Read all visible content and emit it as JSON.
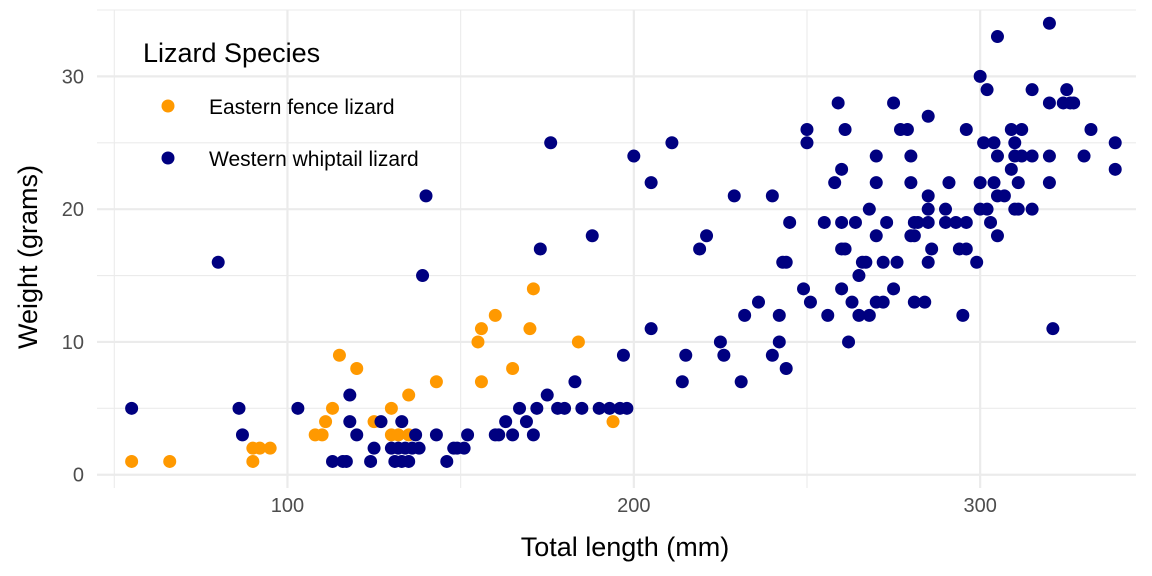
{
  "chart_data": {
    "type": "scatter",
    "xlabel": "Total length (mm)",
    "ylabel": "Weight (grams)",
    "xlim": [
      45,
      345
    ],
    "ylim": [
      -1,
      35
    ],
    "x_ticks": [
      100,
      200,
      300
    ],
    "y_ticks": [
      0,
      10,
      20,
      30
    ],
    "x_minor": [
      50,
      150,
      250,
      350
    ],
    "y_minor": [
      5,
      15,
      25,
      35
    ],
    "grid": true,
    "legend": {
      "title": "Lizard Species",
      "placement": "top-left"
    },
    "series": [
      {
        "name": "Eastern fence lizard",
        "color": "#ff9900",
        "points": [
          [
            55,
            1
          ],
          [
            66,
            1
          ],
          [
            90,
            1
          ],
          [
            90,
            2
          ],
          [
            92,
            2
          ],
          [
            95,
            2
          ],
          [
            108,
            3
          ],
          [
            110,
            3
          ],
          [
            111,
            4
          ],
          [
            113,
            5
          ],
          [
            115,
            9
          ],
          [
            120,
            8
          ],
          [
            125,
            4
          ],
          [
            130,
            3
          ],
          [
            130,
            5
          ],
          [
            132,
            3
          ],
          [
            135,
            3
          ],
          [
            135,
            6
          ],
          [
            143,
            7
          ],
          [
            155,
            10
          ],
          [
            156,
            11
          ],
          [
            156,
            7
          ],
          [
            160,
            12
          ],
          [
            165,
            8
          ],
          [
            170,
            11
          ],
          [
            171,
            14
          ],
          [
            184,
            10
          ],
          [
            194,
            4
          ]
        ]
      },
      {
        "name": "Western whiptail lizard",
        "color": "#000080",
        "points": [
          [
            55,
            5
          ],
          [
            80,
            16
          ],
          [
            86,
            5
          ],
          [
            87,
            3
          ],
          [
            103,
            5
          ],
          [
            113,
            1
          ],
          [
            116,
            1
          ],
          [
            117,
            1
          ],
          [
            118,
            4
          ],
          [
            118,
            6
          ],
          [
            120,
            3
          ],
          [
            124,
            1
          ],
          [
            125,
            2
          ],
          [
            127,
            4
          ],
          [
            130,
            2
          ],
          [
            131,
            1
          ],
          [
            132,
            2
          ],
          [
            133,
            1
          ],
          [
            133,
            4
          ],
          [
            134,
            2
          ],
          [
            135,
            1
          ],
          [
            136,
            2
          ],
          [
            137,
            3
          ],
          [
            138,
            2
          ],
          [
            139,
            15
          ],
          [
            140,
            21
          ],
          [
            143,
            3
          ],
          [
            146,
            1
          ],
          [
            148,
            2
          ],
          [
            149,
            2
          ],
          [
            151,
            2
          ],
          [
            152,
            3
          ],
          [
            160,
            3
          ],
          [
            161,
            3
          ],
          [
            163,
            4
          ],
          [
            165,
            3
          ],
          [
            167,
            5
          ],
          [
            169,
            4
          ],
          [
            171,
            3
          ],
          [
            172,
            5
          ],
          [
            173,
            17
          ],
          [
            175,
            6
          ],
          [
            176,
            25
          ],
          [
            178,
            5
          ],
          [
            180,
            5
          ],
          [
            183,
            7
          ],
          [
            185,
            5
          ],
          [
            188,
            18
          ],
          [
            190,
            5
          ],
          [
            193,
            5
          ],
          [
            196,
            5
          ],
          [
            197,
            9
          ],
          [
            198,
            5
          ],
          [
            200,
            24
          ],
          [
            205,
            22
          ],
          [
            205,
            11
          ],
          [
            211,
            25
          ],
          [
            214,
            7
          ],
          [
            215,
            9
          ],
          [
            219,
            17
          ],
          [
            221,
            18
          ],
          [
            225,
            10
          ],
          [
            226,
            9
          ],
          [
            229,
            21
          ],
          [
            231,
            7
          ],
          [
            232,
            12
          ],
          [
            236,
            13
          ],
          [
            240,
            21
          ],
          [
            240,
            9
          ],
          [
            242,
            10
          ],
          [
            242,
            12
          ],
          [
            243,
            16
          ],
          [
            244,
            8
          ],
          [
            244,
            16
          ],
          [
            245,
            19
          ],
          [
            249,
            14
          ],
          [
            250,
            25
          ],
          [
            250,
            26
          ],
          [
            251,
            13
          ],
          [
            255,
            19
          ],
          [
            256,
            12
          ],
          [
            258,
            22
          ],
          [
            259,
            28
          ],
          [
            260,
            23
          ],
          [
            260,
            17
          ],
          [
            260,
            19
          ],
          [
            260,
            14
          ],
          [
            261,
            26
          ],
          [
            261,
            17
          ],
          [
            262,
            10
          ],
          [
            263,
            13
          ],
          [
            264,
            19
          ],
          [
            265,
            12
          ],
          [
            265,
            15
          ],
          [
            266,
            16
          ],
          [
            267,
            16
          ],
          [
            268,
            20
          ],
          [
            268,
            12
          ],
          [
            270,
            13
          ],
          [
            270,
            24
          ],
          [
            270,
            22
          ],
          [
            270,
            18
          ],
          [
            272,
            16
          ],
          [
            272,
            13
          ],
          [
            273,
            19
          ],
          [
            275,
            14
          ],
          [
            275,
            28
          ],
          [
            276,
            16
          ],
          [
            277,
            26
          ],
          [
            279,
            26
          ],
          [
            280,
            18
          ],
          [
            280,
            22
          ],
          [
            280,
            24
          ],
          [
            281,
            19
          ],
          [
            281,
            18
          ],
          [
            281,
            13
          ],
          [
            282,
            19
          ],
          [
            284,
            13
          ],
          [
            285,
            27
          ],
          [
            285,
            16
          ],
          [
            285,
            19
          ],
          [
            285,
            21
          ],
          [
            285,
            20
          ],
          [
            286,
            17
          ],
          [
            290,
            20
          ],
          [
            291,
            22
          ],
          [
            290,
            19
          ],
          [
            293,
            19
          ],
          [
            294,
            17
          ],
          [
            295,
            12
          ],
          [
            296,
            26
          ],
          [
            296,
            17
          ],
          [
            296,
            19
          ],
          [
            299,
            16
          ],
          [
            300,
            20
          ],
          [
            300,
            30
          ],
          [
            300,
            22
          ],
          [
            301,
            25
          ],
          [
            302,
            20
          ],
          [
            302,
            29
          ],
          [
            303,
            19
          ],
          [
            304,
            22
          ],
          [
            304,
            25
          ],
          [
            305,
            33
          ],
          [
            305,
            18
          ],
          [
            305,
            24
          ],
          [
            305,
            21
          ],
          [
            307,
            21
          ],
          [
            309,
            23
          ],
          [
            309,
            26
          ],
          [
            310,
            25
          ],
          [
            310,
            24
          ],
          [
            310,
            20
          ],
          [
            311,
            22
          ],
          [
            311,
            20
          ],
          [
            312,
            26
          ],
          [
            312,
            24
          ],
          [
            315,
            29
          ],
          [
            315,
            20
          ],
          [
            315,
            24
          ],
          [
            320,
            28
          ],
          [
            320,
            24
          ],
          [
            320,
            22
          ],
          [
            320,
            34
          ],
          [
            321,
            11
          ],
          [
            324,
            28
          ],
          [
            325,
            29
          ],
          [
            326,
            28
          ],
          [
            327,
            28
          ],
          [
            330,
            24
          ],
          [
            332,
            26
          ],
          [
            339,
            25
          ],
          [
            339,
            23
          ]
        ]
      }
    ]
  }
}
